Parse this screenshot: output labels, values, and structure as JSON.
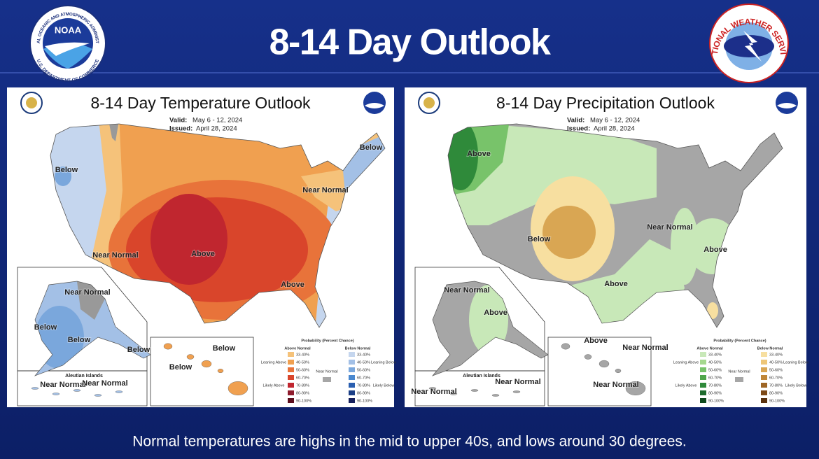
{
  "header": {
    "title": "8-14 Day Outlook",
    "noaa_logo": {
      "abbr": "NOAA",
      "ring_top": "NATIONAL OCEANIC AND ATMOSPHERIC ADMINISTRATION",
      "ring_bottom": "U.S. DEPARTMENT OF COMMERCE"
    },
    "nws_logo": {
      "text": "NATIONAL WEATHER SERVICE"
    }
  },
  "maps": [
    {
      "title": "8-14 Day Temperature Outlook",
      "valid_label": "Valid:",
      "valid": "May 6 - 12, 2024",
      "issued_label": "Issued:",
      "issued": "April 28, 2024",
      "labels": [
        "Below",
        "Near Normal",
        "Above",
        "Above",
        "Below",
        "Near Normal",
        "Near Normal",
        "Below",
        "Below",
        "Below",
        "Below",
        "Below",
        "Near Normal",
        "Near Normal"
      ],
      "inset_label": "Aleutian Islands",
      "legend": {
        "title": "Probability (Percent Chance)",
        "above_header": "Above Normal",
        "below_header": "Below Normal",
        "ranges_above": [
          "33-40%",
          "40-50%",
          "50-60%",
          "60-70%",
          "70-80%",
          "80-90%",
          "90-100%"
        ],
        "ranges_below": [
          "33-40%",
          "40-50%",
          "50-60%",
          "60-70%",
          "70-80%",
          "80-90%",
          "90-100%"
        ],
        "leaning_above": "Leaning Above",
        "likely_above": "Likely Above",
        "near_normal": "Near Normal",
        "leaning_below": "Leaning Below",
        "likely_below": "Likely Below"
      }
    },
    {
      "title": "8-14 Day Precipitation Outlook",
      "valid_label": "Valid:",
      "valid": "May 6 - 12, 2024",
      "issued_label": "Issued:",
      "issued": "April 28, 2024",
      "labels": [
        "Above",
        "Below",
        "Near Normal",
        "Above",
        "Above",
        "Near Normal",
        "Above",
        "Above",
        "Near Normal",
        "Near Normal",
        "Near Normal",
        "Near Normal"
      ],
      "inset_label": "Aleutian Islands",
      "legend": {
        "title": "Probability (Percent Chance)",
        "above_header": "Above Normal",
        "below_header": "Below Normal",
        "ranges_above": [
          "33-40%",
          "40-50%",
          "50-60%",
          "60-70%",
          "70-80%",
          "80-90%",
          "90-100%"
        ],
        "ranges_below": [
          "33-40%",
          "40-50%",
          "50-60%",
          "60-70%",
          "70-80%",
          "80-90%",
          "90-100%"
        ],
        "leaning_above": "Leaning Above",
        "likely_above": "Likely Above",
        "near_normal": "Near Normal",
        "leaning_below": "Leaning Below",
        "likely_below": "Likely Below"
      }
    }
  ],
  "caption": "Normal temperatures are highs in the mid to upper 40s, and lows around 30 degrees."
}
